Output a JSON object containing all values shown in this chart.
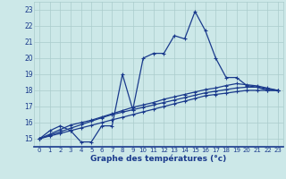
{
  "x": [
    0,
    1,
    2,
    3,
    4,
    5,
    6,
    7,
    8,
    9,
    10,
    11,
    12,
    13,
    14,
    15,
    16,
    17,
    18,
    19,
    20,
    21,
    22,
    23
  ],
  "temp_main": [
    15.0,
    15.5,
    15.8,
    15.5,
    14.8,
    14.8,
    15.8,
    15.8,
    19.0,
    16.8,
    20.0,
    20.3,
    20.3,
    21.4,
    21.2,
    22.9,
    21.7,
    20.0,
    18.8,
    18.8,
    18.3,
    18.2,
    18.0,
    18.0
  ],
  "temp_line1": [
    15.0,
    15.17,
    15.33,
    15.5,
    15.67,
    15.83,
    16.0,
    16.17,
    16.33,
    16.5,
    16.67,
    16.83,
    17.0,
    17.17,
    17.33,
    17.5,
    17.67,
    17.75,
    17.83,
    17.92,
    18.0,
    18.0,
    18.0,
    18.0
  ],
  "temp_line2": [
    15.0,
    15.22,
    15.43,
    15.65,
    15.87,
    16.09,
    16.3,
    16.5,
    16.65,
    16.8,
    16.95,
    17.1,
    17.25,
    17.4,
    17.55,
    17.7,
    17.85,
    17.95,
    18.05,
    18.15,
    18.2,
    18.2,
    18.1,
    18.0
  ],
  "temp_line3": [
    15.0,
    15.28,
    15.57,
    15.85,
    16.0,
    16.15,
    16.35,
    16.55,
    16.75,
    16.95,
    17.1,
    17.25,
    17.45,
    17.6,
    17.75,
    17.9,
    18.05,
    18.15,
    18.3,
    18.42,
    18.35,
    18.28,
    18.14,
    18.0
  ],
  "ylim": [
    14.5,
    23.5
  ],
  "xlim": [
    -0.5,
    23.5
  ],
  "yticks": [
    15,
    16,
    17,
    18,
    19,
    20,
    21,
    22,
    23
  ],
  "xticks": [
    0,
    1,
    2,
    3,
    4,
    5,
    6,
    7,
    8,
    9,
    10,
    11,
    12,
    13,
    14,
    15,
    16,
    17,
    18,
    19,
    20,
    21,
    22,
    23
  ],
  "line_color": "#1a3a8c",
  "bg_color": "#cce8e8",
  "grid_color": "#aacccc",
  "xlabel": "Graphe des températures (°c)",
  "marker": "+"
}
